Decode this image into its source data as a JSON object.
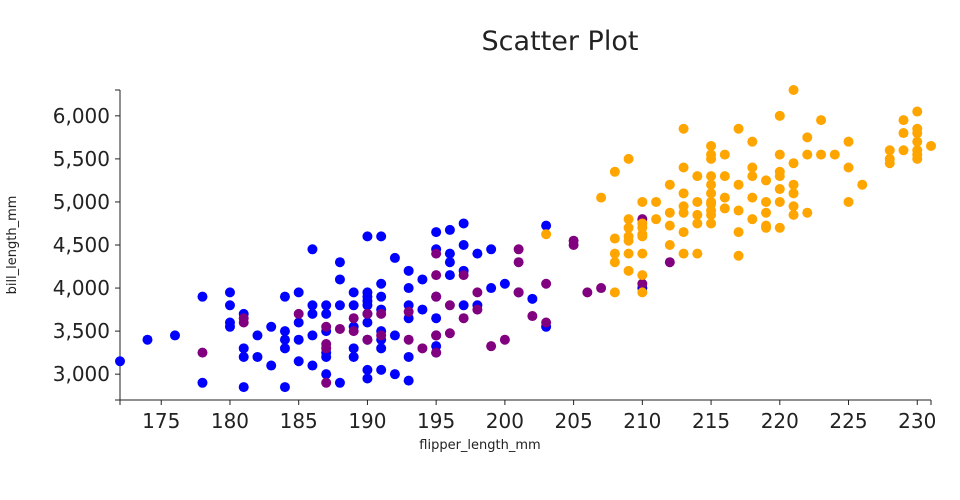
{
  "chart_data": {
    "type": "scatter",
    "title": "Scatter Plot",
    "xlabel": "flipper_length_mm",
    "ylabel": "bill_length_mm",
    "xlim": [
      172,
      231
    ],
    "ylim": [
      2700,
      6300
    ],
    "x_ticks": [
      175,
      180,
      185,
      190,
      195,
      200,
      205,
      210,
      215,
      220,
      225,
      230
    ],
    "x_tick_labels": [
      "175",
      "180",
      "185",
      "190",
      "195",
      "200",
      "205",
      "210",
      "215",
      "220",
      "225",
      "230"
    ],
    "y_ticks": [
      3000,
      3500,
      4000,
      4500,
      5000,
      5500,
      6000
    ],
    "y_tick_labels": [
      "3,000",
      "3,500",
      "4,000",
      "4,500",
      "5,000",
      "5,500",
      "6,000"
    ],
    "grid": false,
    "legend": "none",
    "series": [
      {
        "color": "#0000ff",
        "x": [
          172,
          174,
          176,
          178,
          178,
          180,
          180,
          180,
          180,
          181,
          181,
          181,
          181,
          182,
          182,
          183,
          183,
          184,
          184,
          184,
          184,
          184,
          185,
          185,
          185,
          185,
          186,
          186,
          186,
          186,
          186,
          187,
          187,
          187,
          187,
          187,
          187,
          188,
          188,
          188,
          188,
          189,
          189,
          189,
          189,
          189,
          190,
          190,
          190,
          190,
          190,
          190,
          190,
          190,
          190,
          190,
          191,
          191,
          191,
          191,
          191,
          191,
          191,
          191,
          192,
          192,
          192,
          193,
          193,
          193,
          193,
          193,
          193,
          194,
          194,
          195,
          195,
          195,
          195,
          195,
          195,
          195,
          196,
          196,
          196,
          196,
          197,
          197,
          197,
          197,
          198,
          198,
          199,
          199,
          200,
          201,
          202,
          203,
          203,
          210
        ],
        "y": [
          3150,
          3400,
          3450,
          3900,
          2900,
          3950,
          3800,
          3600,
          3550,
          3300,
          3200,
          3700,
          2850,
          3200,
          3450,
          3550,
          3100,
          3500,
          3400,
          3900,
          3300,
          2850,
          3950,
          3600,
          3400,
          3150,
          3450,
          3700,
          3800,
          4450,
          3100,
          3800,
          3700,
          3500,
          3250,
          3200,
          3000,
          4300,
          4100,
          3800,
          2900,
          3950,
          3800,
          3550,
          3300,
          3200,
          4600,
          3950,
          3900,
          3850,
          3800,
          3700,
          3600,
          3400,
          3050,
          2950,
          4600,
          4050,
          3900,
          3750,
          3500,
          3400,
          3300,
          3050,
          4350,
          3450,
          3000,
          4200,
          4000,
          3800,
          3650,
          3200,
          2925,
          4100,
          3750,
          4650,
          4450,
          3900,
          3650,
          3450,
          3325,
          3250,
          4675,
          4400,
          4300,
          4150,
          4750,
          4500,
          4200,
          3800,
          4400,
          3800,
          4450,
          4000,
          4050,
          3950,
          3875,
          4725,
          3550,
          4000
        ]
      },
      {
        "color": "#800080",
        "x": [
          178,
          181,
          181,
          185,
          187,
          187,
          187,
          187,
          188,
          189,
          189,
          190,
          190,
          191,
          191,
          193,
          193,
          194,
          195,
          195,
          195,
          195,
          195,
          196,
          196,
          197,
          197,
          198,
          198,
          199,
          200,
          201,
          201,
          201,
          202,
          203,
          203,
          205,
          205,
          206,
          207,
          210,
          210,
          212
        ],
        "y": [
          3250,
          3650,
          3600,
          3700,
          3550,
          3350,
          3300,
          2900,
          3525,
          3650,
          3500,
          3400,
          3700,
          3700,
          3450,
          3725,
          3400,
          3300,
          4400,
          4150,
          3900,
          3450,
          3250,
          3800,
          3475,
          4150,
          3650,
          3950,
          3750,
          3325,
          3400,
          4450,
          3950,
          4300,
          3675,
          4050,
          3600,
          4550,
          4500,
          3950,
          4000,
          4800,
          4050,
          4300
        ]
      },
      {
        "color": "#ffa500",
        "x": [
          203,
          207,
          208,
          208,
          208,
          208,
          208,
          209,
          209,
          209,
          209,
          209,
          209,
          209,
          210,
          210,
          210,
          210,
          210,
          210,
          210,
          210,
          211,
          211,
          212,
          212,
          212,
          212,
          213,
          213,
          213,
          213,
          213,
          213,
          213,
          214,
          214,
          214,
          214,
          214,
          215,
          215,
          215,
          215,
          215,
          215,
          215,
          215,
          215,
          215,
          215,
          216,
          216,
          216,
          216,
          217,
          217,
          217,
          217,
          217,
          218,
          218,
          218,
          218,
          218,
          219,
          219,
          219,
          219,
          219,
          220,
          220,
          220,
          220,
          220,
          220,
          220,
          221,
          221,
          221,
          221,
          221,
          221,
          222,
          222,
          222,
          223,
          223,
          224,
          225,
          225,
          225,
          226,
          228,
          228,
          228,
          229,
          229,
          229,
          230,
          230,
          230,
          230,
          230,
          230,
          230,
          231
        ],
        "y": [
          4625,
          5050,
          5350,
          4575,
          4400,
          4300,
          3950,
          5500,
          4800,
          4700,
          4600,
          4550,
          4400,
          4200,
          5000,
          4750,
          4700,
          4625,
          4600,
          4400,
          4150,
          3950,
          5000,
          4800,
          5200,
          4875,
          4725,
          4500,
          5850,
          5400,
          5100,
          4950,
          4875,
          4650,
          4400,
          5300,
          5000,
          4850,
          4750,
          4400,
          5650,
          5550,
          5500,
          5300,
          5200,
          5100,
          5000,
          4975,
          4900,
          4850,
          4750,
          5550,
          5300,
          5050,
          4925,
          5850,
          5200,
          4900,
          4650,
          4375,
          5700,
          5400,
          5300,
          5050,
          4800,
          5250,
          5000,
          4875,
          4725,
          4700,
          6000,
          5550,
          5350,
          5300,
          5150,
          5000,
          4700,
          6300,
          5450,
          5200,
          5100,
          4950,
          4850,
          5750,
          5550,
          4875,
          5950,
          5550,
          5550,
          5700,
          5400,
          5000,
          5200,
          5600,
          5500,
          5450,
          5950,
          5800,
          5600,
          6050,
          5850,
          5800,
          5700,
          5600,
          5550,
          5500,
          5650
        ]
      }
    ]
  }
}
